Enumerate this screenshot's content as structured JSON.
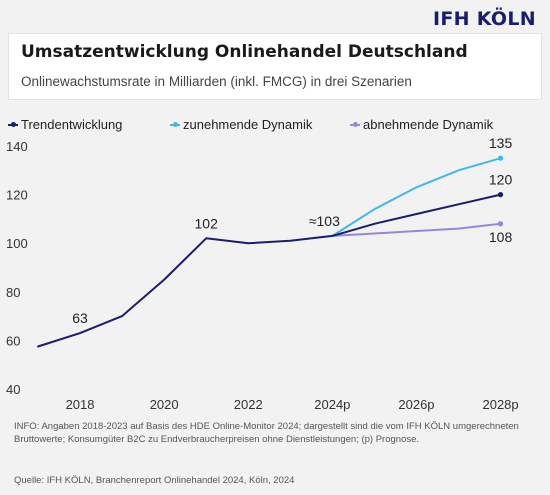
{
  "brand": {
    "logo": "IFH KÖLN"
  },
  "colors": {
    "background": "#f2f2f2",
    "trend": "#1a1d6e",
    "increasing": "#3fb8ec",
    "decreasing": "#9b85dc",
    "axis_text": "#333333"
  },
  "chart_data": {
    "type": "line",
    "title": "Umsatzentwicklung Onlinehandel Deutschland",
    "subtitle": "Onlinewachstumsrate in Milliarden (inkl. FMCG) in drei Szenarien",
    "xlabel": "",
    "ylabel": "",
    "x": [
      2017,
      2018,
      2019,
      2020,
      2021,
      2022,
      2023,
      2024,
      2025,
      2026,
      2027,
      2028
    ],
    "x_ticks": [
      {
        "value": 2018,
        "label": "2018"
      },
      {
        "value": 2020,
        "label": "2020"
      },
      {
        "value": 2022,
        "label": "2022"
      },
      {
        "value": 2024,
        "label": "2024p"
      },
      {
        "value": 2026,
        "label": "2026p"
      },
      {
        "value": 2028,
        "label": "2028p"
      }
    ],
    "xlim": [
      2017,
      2028.7
    ],
    "ylim": [
      40,
      140
    ],
    "y_ticks": [
      40,
      60,
      80,
      100,
      120,
      140
    ],
    "grid": false,
    "legend_position": "top-left",
    "series": [
      {
        "name": "Trendentwicklung",
        "color": "#1a1d6e",
        "x": [
          2017,
          2018,
          2019,
          2020,
          2021,
          2022,
          2023,
          2024,
          2025,
          2026,
          2027,
          2028
        ],
        "values": [
          57.5,
          63,
          70,
          85,
          102,
          100,
          101,
          103,
          108,
          112,
          116,
          120
        ]
      },
      {
        "name": "zunehmende Dynamik",
        "color": "#3fb8ec",
        "x": [
          2024,
          2025,
          2026,
          2027,
          2028
        ],
        "values": [
          103,
          114,
          123,
          130,
          135
        ]
      },
      {
        "name": "abnehmende Dynamik",
        "color": "#9b85dc",
        "x": [
          2024,
          2025,
          2026,
          2027,
          2028
        ],
        "values": [
          103,
          104,
          105,
          106,
          108
        ]
      }
    ],
    "annotations": [
      {
        "text": "63",
        "x": 2018,
        "y": 63,
        "position": "above"
      },
      {
        "text": "102",
        "x": 2021,
        "y": 102,
        "position": "above"
      },
      {
        "text": "≈103",
        "x": 2024,
        "y": 103,
        "position": "above-left"
      },
      {
        "text": "135",
        "x": 2028,
        "y": 135,
        "position": "above"
      },
      {
        "text": "120",
        "x": 2028,
        "y": 120,
        "position": "above"
      },
      {
        "text": "108",
        "x": 2028,
        "y": 108,
        "position": "below"
      }
    ]
  },
  "footer": {
    "info": "INFO: Angaben 2018-2023 auf Basis des HDE Online-Monitor 2024; dargestellt sind die vom IFH KÖLN umgerechneten Bruttowerte; Konsumgüter B2C zu Endverbraucherpreisen ohne Dienstleistungen; (p) Prognose.",
    "source": "Quelle: IFH KÖLN, Branchenreport Onlinehandel 2024, Köln, 2024"
  }
}
